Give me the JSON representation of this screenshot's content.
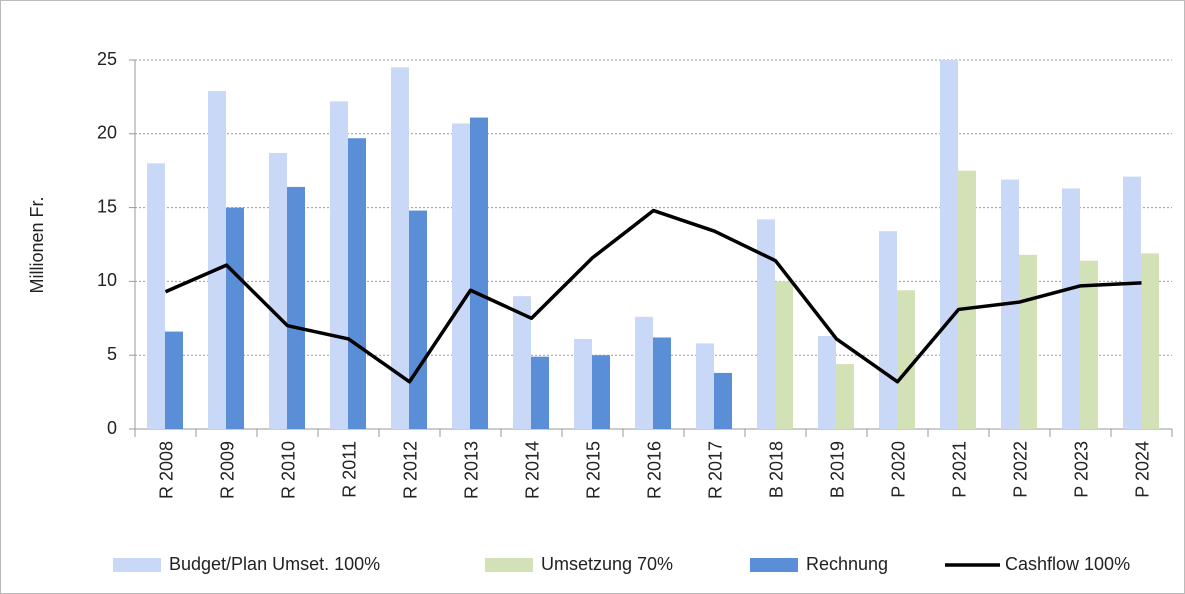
{
  "chart_data": {
    "type": "bar",
    "y_label": "Millionen Fr.",
    "categories": [
      "R 2008",
      "R 2009",
      "R 2010",
      "R 2011",
      "R 2012",
      "R 2013",
      "R 2014",
      "R 2015",
      "R 2016",
      "R 2017",
      "B 2018",
      "B 2019",
      "P 2020",
      "P 2021",
      "P 2022",
      "P 2023",
      "P 2024"
    ],
    "series": [
      {
        "name": "Budget/Plan Umset. 100%",
        "type": "bar",
        "color": "#c9d8f6",
        "values": [
          18,
          22.9,
          18.7,
          22.2,
          24.5,
          20.7,
          9,
          6.1,
          7.6,
          5.8,
          14.2,
          6.3,
          13.4,
          25,
          16.9,
          16.3,
          17.1
        ]
      },
      {
        "name": "Umsetzung 70%",
        "type": "bar",
        "color": "#d3e2b6",
        "values": [
          null,
          null,
          null,
          null,
          null,
          null,
          null,
          null,
          null,
          null,
          10,
          4.4,
          9.4,
          17.5,
          11.8,
          11.4,
          11.9
        ]
      },
      {
        "name": "Rechnung",
        "type": "bar",
        "color": "#5a8fd8",
        "values": [
          6.6,
          15,
          16.4,
          19.7,
          14.8,
          21.1,
          4.9,
          5,
          6.2,
          3.8,
          null,
          null,
          null,
          null,
          null,
          null,
          null
        ]
      },
      {
        "name": "Cashflow 100%",
        "type": "line",
        "color": "#000000",
        "values": [
          9.3,
          11.1,
          7.0,
          6.1,
          3.2,
          9.4,
          7.5,
          11.6,
          14.8,
          13.4,
          11.4,
          6.1,
          3.2,
          8.1,
          8.6,
          9.7,
          9.9
        ]
      }
    ],
    "ylim": [
      0,
      25
    ],
    "yticks": [
      0,
      5,
      10,
      15,
      20,
      25
    ],
    "grid": true,
    "legend": "bottom"
  }
}
